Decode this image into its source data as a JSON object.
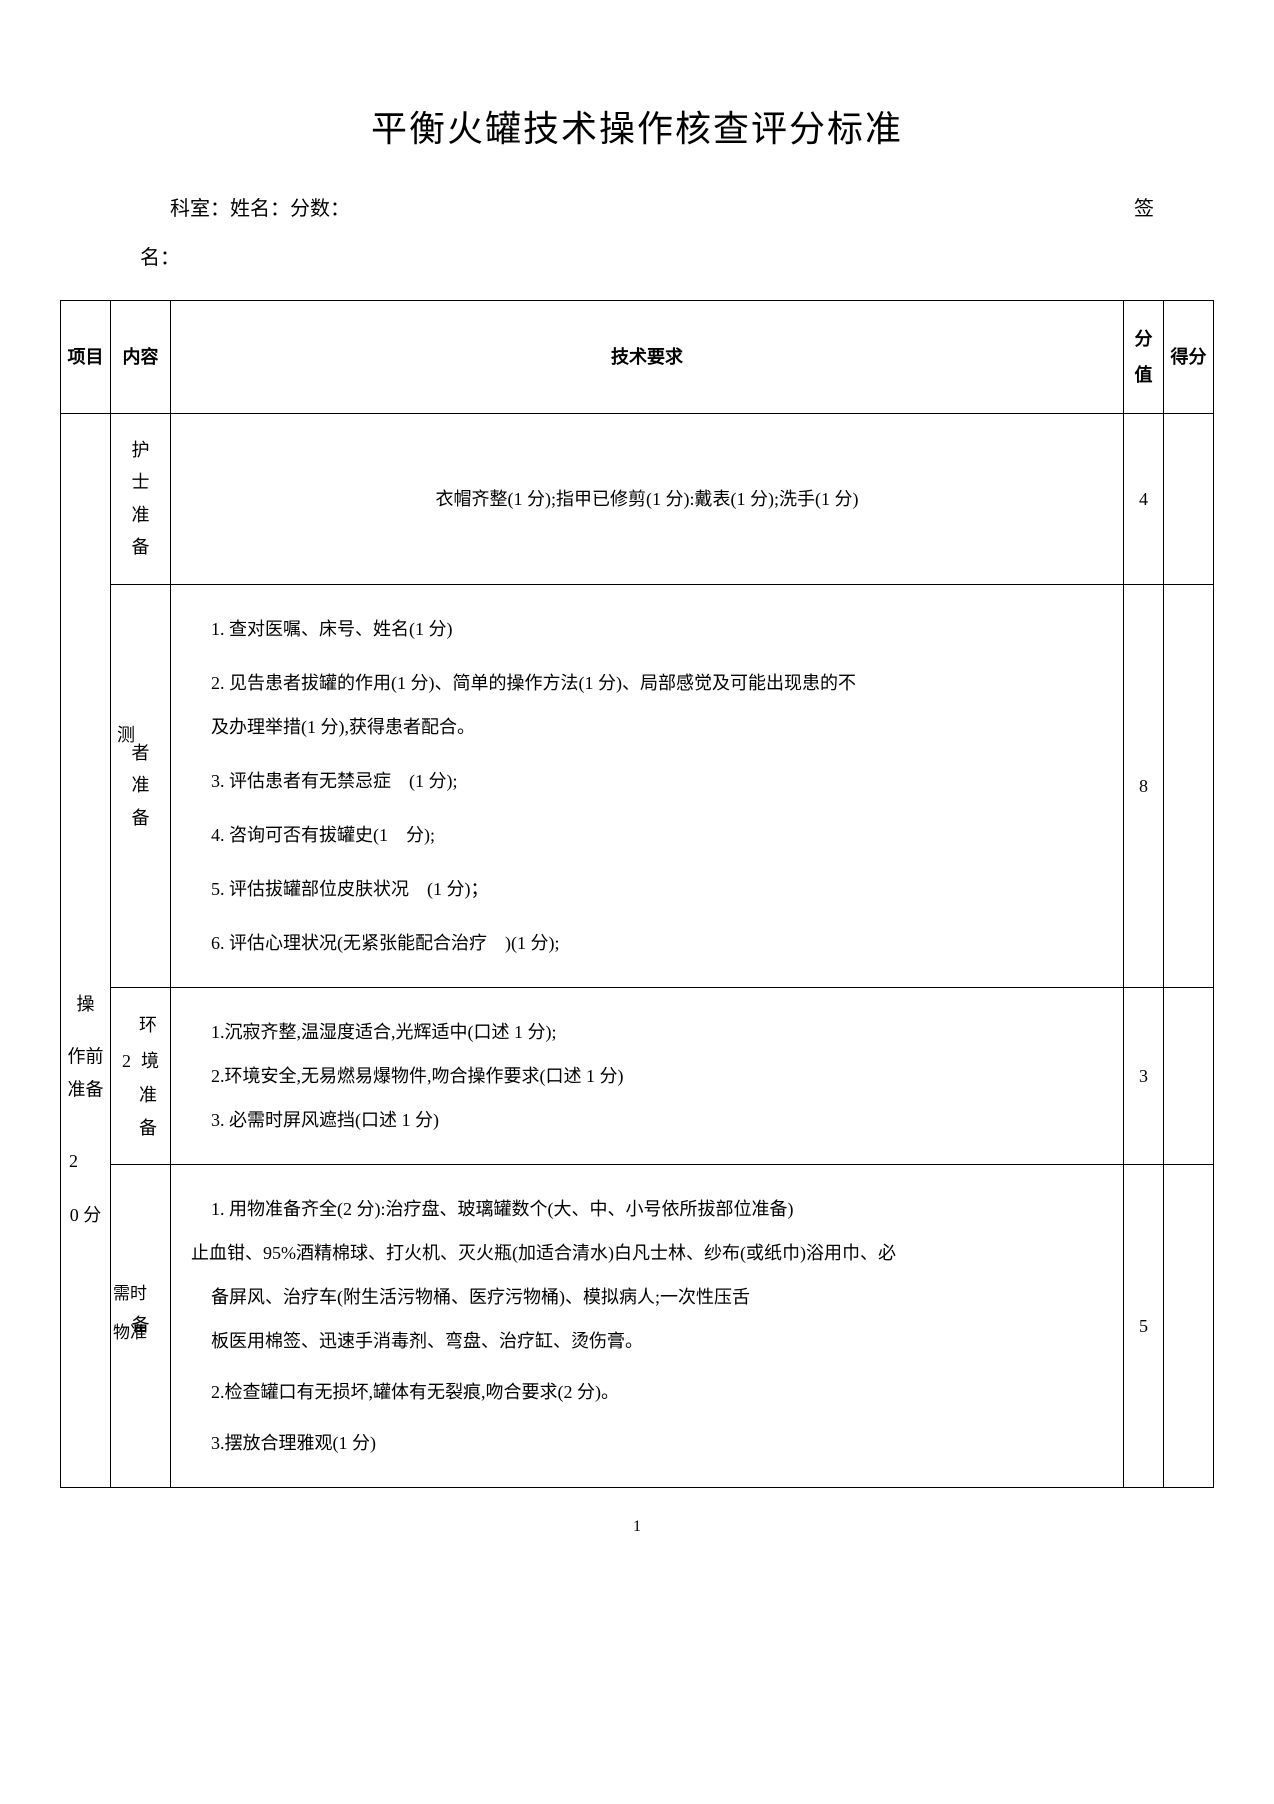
{
  "title": "平衡火罐技术操作核查评分标准",
  "header": {
    "left": "科室：姓名：分数：",
    "right": "签",
    "line2": "名："
  },
  "tableHead": {
    "project": "项目",
    "content": "内容",
    "requirement": "技术要求",
    "scoreValue": "分值",
    "scoreGot": "得分"
  },
  "section1": {
    "project_line1": "操",
    "project_rest": "作前准备",
    "project_bottom1": "2",
    "project_bottom2": "0 分",
    "row1": {
      "content": "护士准备",
      "req": "衣帽齐整(1 分);指甲已修剪(1 分):戴表(1 分);洗手(1 分)",
      "score": "4"
    },
    "row2": {
      "content_pre": "测",
      "content": "者准备",
      "req1": "1. 查对医嘱、床号、姓名(1 分)",
      "req2": "2. 见告患者拔罐的作用(1 分)、简单的操作方法(1 分)、局部感觉及可能出现患的不",
      "req2_cont": "及办理举措(1 分),获得患者配合。",
      "req3": "3. 评估患者有无禁忌症　(1 分);",
      "req4": "4. 咨询可否有拔罐史(1　分);",
      "req5": "5. 评估拔罐部位皮肤状况　(1 分)；",
      "req6": "6. 评估心理状况(无紧张能配合治疗　)(1 分);",
      "score": "8"
    },
    "row3": {
      "content_suffix1": "环",
      "content_prefix2": "2",
      "content_suffix2": "境",
      "content_rest": "准备",
      "req1": "1.沉寂齐整,温湿度适合,光辉适中(口述 1 分);",
      "req2": "2.环境安全,无易燃易爆物件,吻合操作要求(口述 1 分)",
      "req3": "3. 必需时屏风遮挡(口述 1 分)",
      "score": "3"
    },
    "row4": {
      "content_pre1": "需时",
      "content_pre2": "物准",
      "content": "备",
      "req1": "1. 用物准备齐全(2 分):治疗盘、玻璃罐数个(大、中、小号依所拔部位准备)",
      "req1b": "止血钳、95%酒精棉球、打火机、灭火瓶(加适合清水)白凡士林、纱布(或纸巾)浴用巾、必",
      "req1c": "备屏风、治疗车(附生活污物桶、医疗污物桶)、模拟病人;一次性压舌",
      "req1d": "板医用棉签、迅速手消毒剂、弯盘、治疗缸、烫伤膏。",
      "req2": "2.检查罐口有无损坏,罐体有无裂痕,吻合要求(2 分)。",
      "req3": "3.摆放合理雅观(1 分)",
      "score": "5"
    }
  },
  "pageNumber": "1"
}
